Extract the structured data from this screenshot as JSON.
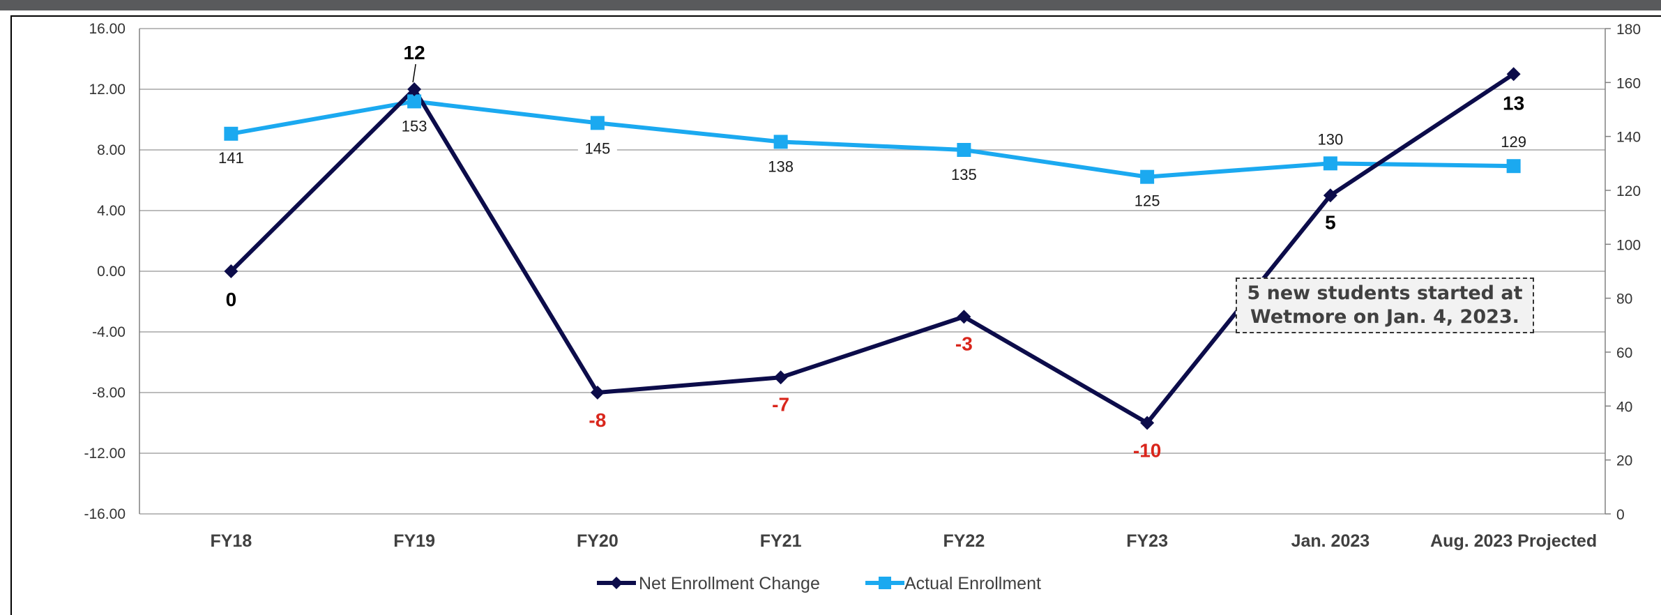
{
  "chart_data": {
    "type": "line",
    "categories": [
      "FY18",
      "FY19",
      "FY20",
      "FY21",
      "FY22",
      "FY23",
      "Jan. 2023",
      "Aug. 2023 Projected"
    ],
    "series": [
      {
        "name": "Net Enrollment Change",
        "axis": "left",
        "color": "#0c0c4a",
        "marker": "diamond",
        "values": [
          0,
          12,
          -8,
          -7,
          -3,
          -10,
          5,
          13
        ],
        "labels": [
          "0",
          "12",
          "-8",
          "-7",
          "-3",
          "-10",
          "5",
          "13"
        ],
        "label_colors": [
          "#000000",
          "#000000",
          "#d9261c",
          "#d9261c",
          "#d9261c",
          "#d9261c",
          "#000000",
          "#000000"
        ]
      },
      {
        "name": "Actual Enrollment",
        "axis": "right",
        "color": "#1ba9f0",
        "marker": "square",
        "values": [
          141,
          153,
          145,
          138,
          135,
          125,
          130,
          129
        ],
        "labels": [
          "141",
          "153",
          "145",
          "138",
          "135",
          "125",
          "130",
          "129"
        ]
      }
    ],
    "y_left": {
      "ylim": [
        -16,
        16
      ],
      "ticks": [
        16,
        12,
        8,
        4,
        0,
        -4,
        -8,
        -12,
        -16
      ],
      "tick_labels": [
        "16.00",
        "12.00",
        "8.00",
        "4.00",
        "0.00",
        "-4.00",
        "-8.00",
        "-12.00",
        "-16.00"
      ]
    },
    "y_right": {
      "ylim": [
        0,
        180
      ],
      "ticks": [
        180,
        160,
        140,
        120,
        100,
        80,
        60,
        40,
        20,
        0
      ],
      "tick_labels": [
        "180",
        "160",
        "140",
        "120",
        "100",
        "80",
        "60",
        "40",
        "20",
        "0"
      ]
    },
    "grid": true,
    "legend": "bottom-center",
    "annotation": "5 new students started at\nWetmore on Jan. 4, 2023."
  }
}
